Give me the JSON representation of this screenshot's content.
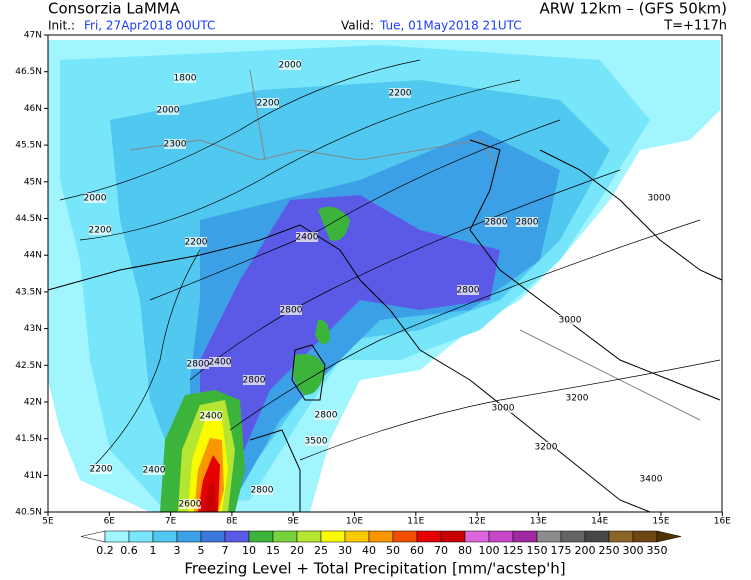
{
  "header": {
    "org": "Consorzia LaMMA",
    "model": "ARW 12km  –  (GFS 50km)",
    "init_label": "Init.:",
    "init": "Fri, 27Apr2018 00UTC",
    "valid_label": "Valid:",
    "valid": "Tue, 01May2018 21UTC",
    "lead": "T=+117h"
  },
  "map": {
    "lat_labels": [
      "47N",
      "46.5N",
      "46N",
      "45.5N",
      "45N",
      "44.5N",
      "44N",
      "43.5N",
      "43N",
      "42.5N",
      "42N",
      "41.5N",
      "41N",
      "40.5N"
    ],
    "lon_labels": [
      "5E",
      "6E",
      "7E",
      "8E",
      "9E",
      "10E",
      "11E",
      "12E",
      "13E",
      "14E",
      "15E",
      "16E"
    ],
    "contour_labels": [
      "1800",
      "2000",
      "2000",
      "2200",
      "2200",
      "2300",
      "2000",
      "2200",
      "2200",
      "2400",
      "2800",
      "2800",
      "2800",
      "2800",
      "3000",
      "2800",
      "2400",
      "2800",
      "3000",
      "2400",
      "2800",
      "3000",
      "3200",
      "3500",
      "3200",
      "2200",
      "2400",
      "2800",
      "3400",
      "2600"
    ]
  },
  "colorbar": {
    "labels": [
      "0.2",
      "0.6",
      "1",
      "3",
      "5",
      "7",
      "10",
      "15",
      "20",
      "25",
      "30",
      "40",
      "50",
      "60",
      "70",
      "80",
      "100",
      "125",
      "150",
      "175",
      "200",
      "250",
      "300",
      "350"
    ],
    "colors": [
      "#ffffff",
      "#a0f5ff",
      "#78e6fa",
      "#50c8f0",
      "#3ca0e6",
      "#3c78dc",
      "#5a5ae6",
      "#3cb43c",
      "#78d23c",
      "#b4e632",
      "#fafa00",
      "#fac800",
      "#fa9600",
      "#f05000",
      "#e60000",
      "#c80000",
      "#dc64dc",
      "#c846c8",
      "#a028a0",
      "#8c8c8c",
      "#646464",
      "#464646",
      "#8c6428",
      "#6e4614",
      "#503200"
    ],
    "title": "Freezing Level + Total Precipitation [mm/'acstep'h]"
  }
}
